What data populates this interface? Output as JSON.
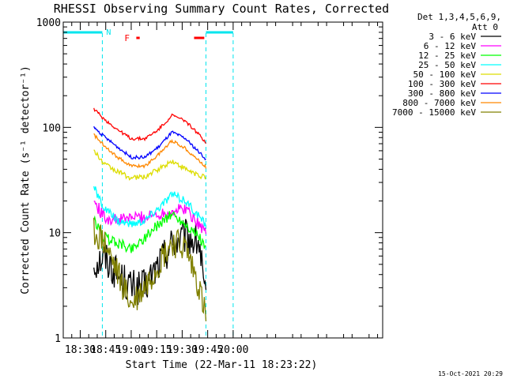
{
  "chart_data": {
    "type": "line",
    "title": "RHESSI Observing Summary Count Rates, Corrected",
    "xlabel": "Start Time (22-Mar-11 18:23:22)",
    "ylabel": "Corrected Count Rate (s⁻¹ detector⁻¹)",
    "yscale": "log",
    "ylim": [
      1,
      1000
    ],
    "xlim_min": [
      20,
      208
    ],
    "x_ticks": [
      {
        "min": 30,
        "label": "18:30"
      },
      {
        "min": 45,
        "label": "18:45"
      },
      {
        "min": 60,
        "label": "19:00"
      },
      {
        "min": 75,
        "label": "19:15"
      },
      {
        "min": 90,
        "label": "19:30"
      },
      {
        "min": 105,
        "label": "19:45"
      },
      {
        "min": 120,
        "label": "20:00"
      }
    ],
    "y_ticks": [
      {
        "value": 1,
        "label": "1"
      },
      {
        "value": 10,
        "label": "10"
      },
      {
        "value": 100,
        "label": "100"
      },
      {
        "value": 1000,
        "label": "1000"
      }
    ],
    "legend_header": [
      "Det 1,3,4,5,6,9,",
      "Att 0"
    ],
    "legend_position": "top-right",
    "series": [
      {
        "name": "3 - 6 keV",
        "color": "#000000",
        "x": [
          38,
          44,
          52,
          60,
          68,
          76,
          84,
          92,
          100,
          104
        ],
        "values": [
          5,
          6,
          4,
          3,
          3,
          5,
          8,
          9,
          8,
          2
        ]
      },
      {
        "name": "6 - 12 keV",
        "color": "#ff00ff",
        "x": [
          38,
          44,
          52,
          60,
          68,
          76,
          84,
          92,
          100,
          104
        ],
        "values": [
          20,
          14,
          13,
          14,
          14,
          15,
          16,
          17,
          12,
          10
        ]
      },
      {
        "name": "12 - 25 keV",
        "color": "#00ff00",
        "x": [
          38,
          44,
          52,
          60,
          68,
          76,
          84,
          92,
          100,
          104
        ],
        "values": [
          13,
          9,
          8,
          7,
          9,
          12,
          15,
          12,
          9,
          7
        ]
      },
      {
        "name": "25 - 50 keV",
        "color": "#00ffff",
        "x": [
          38,
          44,
          52,
          60,
          68,
          76,
          84,
          92,
          100,
          104
        ],
        "values": [
          27,
          17,
          13,
          12,
          13,
          17,
          23,
          20,
          14,
          12
        ]
      },
      {
        "name": "50 - 100 keV",
        "color": "#dddd00",
        "x": [
          38,
          44,
          52,
          60,
          68,
          76,
          84,
          92,
          100,
          104
        ],
        "values": [
          60,
          45,
          38,
          33,
          34,
          40,
          48,
          40,
          35,
          33
        ]
      },
      {
        "name": "100 - 300 keV",
        "color": "#ff0000",
        "x": [
          38,
          44,
          52,
          60,
          68,
          76,
          84,
          92,
          100,
          104
        ],
        "values": [
          150,
          120,
          95,
          78,
          78,
          95,
          130,
          115,
          85,
          72
        ]
      },
      {
        "name": "300 - 800 keV",
        "color": "#0000ff",
        "x": [
          38,
          44,
          52,
          60,
          68,
          76,
          84,
          92,
          100,
          104
        ],
        "values": [
          100,
          82,
          65,
          52,
          52,
          65,
          90,
          78,
          58,
          50
        ]
      },
      {
        "name": "800 - 7000 keV",
        "color": "#ff8800",
        "x": [
          38,
          44,
          52,
          60,
          68,
          76,
          84,
          92,
          100,
          104
        ],
        "values": [
          85,
          68,
          52,
          43,
          43,
          55,
          75,
          63,
          48,
          42
        ]
      },
      {
        "name": "7000 - 15000 keV",
        "color": "#808000",
        "x": [
          38,
          44,
          52,
          60,
          68,
          76,
          84,
          92,
          100,
          104
        ],
        "values": [
          10,
          8,
          4,
          2,
          3,
          5,
          8,
          7,
          3,
          1.5
        ]
      }
    ],
    "annotations": {
      "night_marker": "N",
      "flare_marker": "F",
      "night_bars": [
        [
          20,
          43
        ],
        [
          104,
          120
        ]
      ],
      "night_lines": [
        43,
        104,
        120
      ],
      "flare_bars": [
        [
          63,
          65
        ],
        [
          97,
          103
        ]
      ]
    }
  },
  "footer": {
    "date_stamp": "15-Oct-2021 20:29"
  }
}
